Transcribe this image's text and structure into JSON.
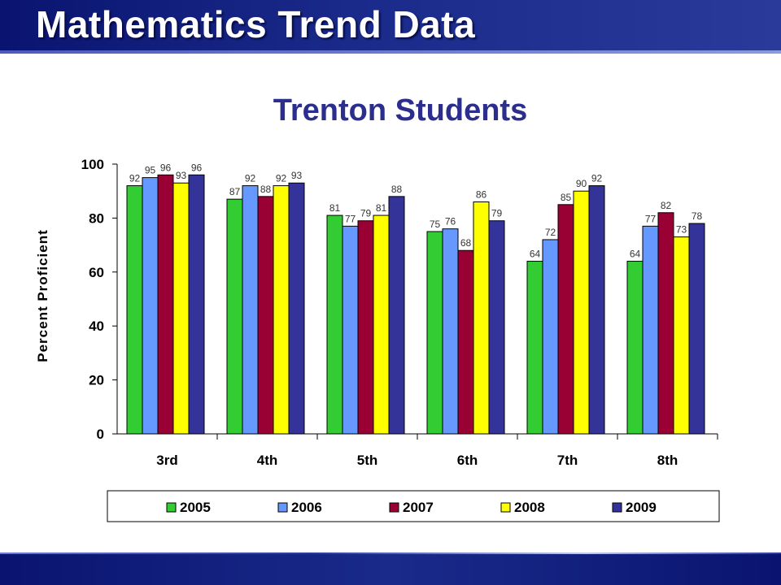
{
  "slide": {
    "title": "Mathematics Trend Data"
  },
  "chart_data": {
    "type": "bar",
    "title": "Trenton Students",
    "xlabel": "",
    "ylabel": "Percent Proficient",
    "ylim": [
      0,
      100
    ],
    "yticks": [
      0,
      20,
      40,
      60,
      80,
      100
    ],
    "categories": [
      "3rd",
      "4th",
      "5th",
      "6th",
      "7th",
      "8th"
    ],
    "series": [
      {
        "name": "2005",
        "color": "#33cc33",
        "values": [
          92,
          87,
          81,
          75,
          64,
          64
        ]
      },
      {
        "name": "2006",
        "color": "#6699ff",
        "values": [
          95,
          92,
          77,
          76,
          72,
          77
        ]
      },
      {
        "name": "2007",
        "color": "#990033",
        "values": [
          96,
          88,
          79,
          68,
          85,
          82
        ]
      },
      {
        "name": "2008",
        "color": "#ffff00",
        "values": [
          93,
          92,
          81,
          86,
          90,
          73
        ]
      },
      {
        "name": "2009",
        "color": "#333399",
        "values": [
          96,
          93,
          88,
          79,
          92,
          78
        ]
      }
    ],
    "grid": false,
    "legend": "bottom",
    "data_labels": true
  }
}
